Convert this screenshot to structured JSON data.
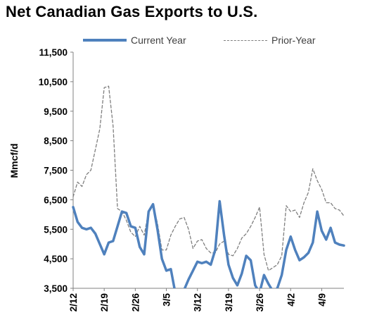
{
  "chart_data": {
    "type": "line",
    "title": "Net Canadian Gas Exports to U.S.",
    "ylabel": "Mmcf/d",
    "xlabel": "",
    "ylim": [
      3500,
      11500
    ],
    "yticks": [
      3500,
      4500,
      5500,
      6500,
      7500,
      8500,
      9500,
      10500,
      11500
    ],
    "ytick_labels": [
      "3,500",
      "4,500",
      "5,500",
      "6,500",
      "7,500",
      "8,500",
      "9,500",
      "10,500",
      "11,500"
    ],
    "x_tick_labels": [
      {
        "label": "2/12",
        "index": 0
      },
      {
        "label": "2/19",
        "index": 7
      },
      {
        "label": "2/26",
        "index": 14
      },
      {
        "label": "3/5",
        "index": 21
      },
      {
        "label": "3/12",
        "index": 28
      },
      {
        "label": "3/19",
        "index": 35
      },
      {
        "label": "3/26",
        "index": 42
      },
      {
        "label": "4/2",
        "index": 49
      },
      {
        "label": "4/9",
        "index": 56
      }
    ],
    "n_points": 62,
    "legend_position": "top",
    "series": [
      {
        "name": "Current Year",
        "color": "#4f81bd",
        "style": "solid",
        "values": [
          6250,
          5750,
          5550,
          5500,
          5550,
          5350,
          5000,
          4650,
          5050,
          5100,
          5600,
          6100,
          6050,
          5600,
          5550,
          4900,
          4650,
          6100,
          6350,
          5500,
          4500,
          4100,
          4150,
          3350,
          3400,
          3450,
          3800,
          4100,
          4400,
          4350,
          4400,
          4300,
          4800,
          6450,
          5300,
          4300,
          3850,
          3600,
          4000,
          4600,
          4450,
          3600,
          3350,
          3950,
          3650,
          3400,
          3500,
          3950,
          4800,
          5250,
          4800,
          4450,
          4550,
          4700,
          5050,
          6100,
          5450,
          5150,
          5550,
          5050,
          4980,
          4950
        ]
      },
      {
        "name": "Prior-Year",
        "color": "#7f7f7f",
        "style": "dashed",
        "values": [
          6600,
          7100,
          6950,
          7350,
          7500,
          8200,
          8900,
          10300,
          10350,
          9000,
          6200,
          6100,
          5800,
          5400,
          5250,
          5600,
          5300,
          6100,
          6350,
          5700,
          4800,
          4800,
          5300,
          5600,
          5850,
          5900,
          5500,
          4850,
          5100,
          5150,
          4850,
          4700,
          4700,
          5000,
          5100,
          4650,
          4600,
          4850,
          5200,
          5350,
          5600,
          5900,
          6250,
          4650,
          4100,
          4200,
          4300,
          4600,
          6300,
          6100,
          6150,
          5900,
          6400,
          6750,
          7550,
          7150,
          6850,
          6400,
          6400,
          6200,
          6150,
          5950
        ]
      }
    ],
    "grid": false
  }
}
